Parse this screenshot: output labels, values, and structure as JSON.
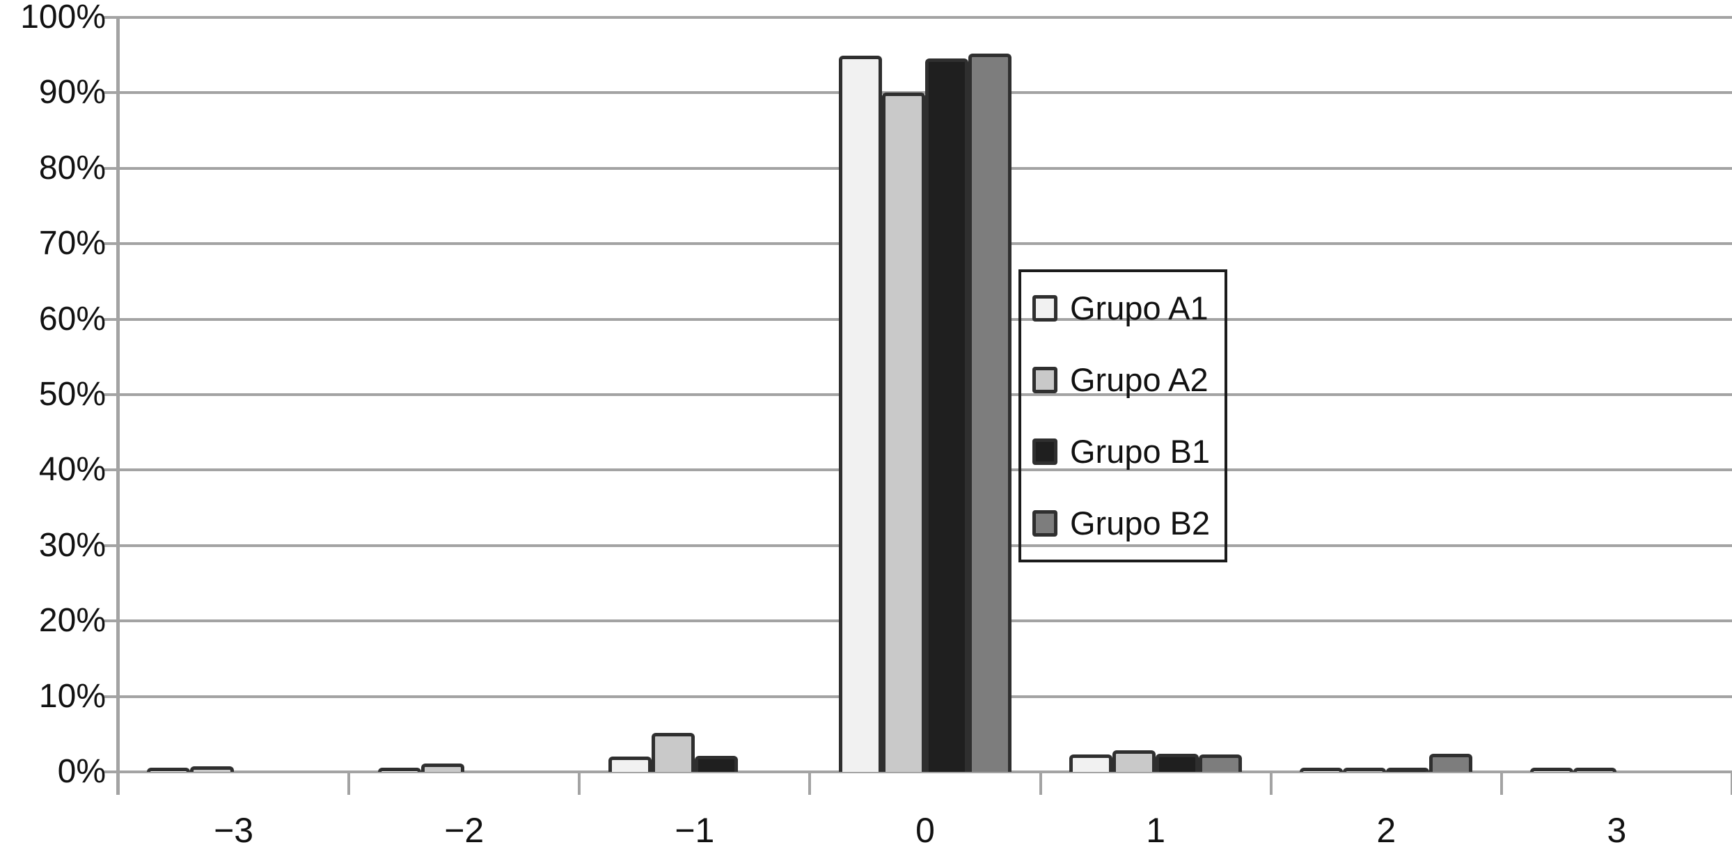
{
  "chart_data": {
    "type": "bar",
    "categories": [
      "−3",
      "−2",
      "−1",
      "0",
      "1",
      "2",
      "3"
    ],
    "series": [
      {
        "name": "Grupo A1",
        "color": "#f1f1f1",
        "values": [
          0.3,
          0.4,
          2.0,
          94.9,
          2.3,
          0.3,
          0.3
        ]
      },
      {
        "name": "Grupo A2",
        "color": "#c9c9c9",
        "values": [
          0.7,
          1.1,
          5.2,
          90.0,
          2.9,
          0.3,
          0.3
        ]
      },
      {
        "name": "Grupo B1",
        "color": "#1f1f1f",
        "values": [
          0,
          0,
          2.1,
          94.6,
          2.4,
          0.3,
          0
        ]
      },
      {
        "name": "Grupo B2",
        "color": "#7d7d7d",
        "values": [
          0,
          0,
          0,
          95.2,
          2.3,
          2.4,
          0
        ]
      }
    ],
    "title": "",
    "xlabel": "",
    "ylabel": "",
    "ylim": [
      0,
      100
    ],
    "ytick_step": 10,
    "ytick_labels": [
      "0%",
      "10%",
      "20%",
      "30%",
      "40%",
      "50%",
      "60%",
      "70%",
      "80%",
      "90%",
      "100%"
    ],
    "grid": true,
    "legend_position": "inside-right",
    "colors": {
      "bar_border": "#2f2f2f",
      "gridline": "#a3a3a3",
      "text": "#111111",
      "background": "#ffffff",
      "legend_border": "#1b1b1b"
    }
  }
}
